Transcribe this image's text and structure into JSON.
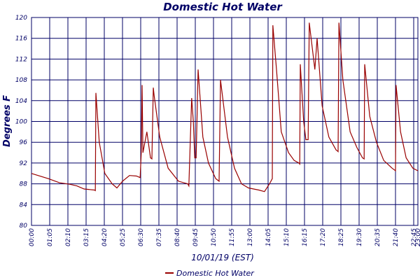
{
  "chart_data": {
    "type": "line",
    "title": "Domestic Hot Water",
    "x_label": "10/01/19 (EST)",
    "y_label": "Degrees F",
    "x": [
      0,
      60,
      100,
      138,
      162,
      188,
      225,
      228,
      230,
      242,
      262,
      288,
      305,
      325,
      350,
      375,
      388,
      392,
      395,
      398,
      412,
      425,
      430,
      435,
      438,
      458,
      488,
      525,
      558,
      562,
      572,
      578,
      583,
      588,
      595,
      612,
      632,
      658,
      670,
      675,
      700,
      725,
      750,
      775,
      812,
      832,
      850,
      858,
      860,
      862,
      875,
      892,
      918,
      938,
      955,
      958,
      960,
      972,
      980,
      988,
      992,
      1012,
      1020,
      1038,
      1062,
      1088,
      1093,
      1095,
      1098,
      1112,
      1138,
      1162,
      1182,
      1188,
      1190,
      1208,
      1232,
      1258,
      1288,
      1298,
      1300,
      1302,
      1318,
      1338,
      1362,
      1380
    ],
    "series": [
      {
        "name": "Domestic Hot Water",
        "color": "#990000",
        "values": [
          90,
          89,
          88.2,
          87.9,
          87.6,
          87,
          86.8,
          86.7,
          105.5,
          96,
          90,
          88,
          87.2,
          88.5,
          89.6,
          89.5,
          89.2,
          94,
          107,
          94,
          98,
          93,
          92.8,
          106.5,
          105,
          97,
          91,
          88.5,
          88,
          87.6,
          104.5,
          100,
          93,
          93,
          110,
          97,
          92,
          89,
          88.5,
          108,
          97,
          91,
          88,
          87.2,
          86.8,
          86.5,
          88,
          88.8,
          89,
          118.5,
          110,
          98,
          94,
          92.5,
          92,
          91.8,
          111,
          100,
          96.5,
          96.5,
          119,
          110,
          116,
          103,
          97,
          94.5,
          94.3,
          94.2,
          119,
          108,
          98,
          95,
          93,
          92.8,
          111,
          101,
          96,
          92.5,
          91,
          90.6,
          90.5,
          107,
          98,
          93,
          91,
          90.5
        ]
      }
    ],
    "xlim": [
      0,
      1380
    ],
    "xticks": [
      {
        "value": 0,
        "label": "00:00"
      },
      {
        "value": 65,
        "label": "01:05"
      },
      {
        "value": 130,
        "label": "02:10"
      },
      {
        "value": 195,
        "label": "03:15"
      },
      {
        "value": 260,
        "label": "04:20"
      },
      {
        "value": 325,
        "label": "05:25"
      },
      {
        "value": 390,
        "label": "06:30"
      },
      {
        "value": 455,
        "label": "07:35"
      },
      {
        "value": 520,
        "label": "08:40"
      },
      {
        "value": 585,
        "label": "09:45"
      },
      {
        "value": 650,
        "label": "10:50"
      },
      {
        "value": 715,
        "label": "11:55"
      },
      {
        "value": 780,
        "label": "13:00"
      },
      {
        "value": 845,
        "label": "14:05"
      },
      {
        "value": 910,
        "label": "15:10"
      },
      {
        "value": 975,
        "label": "16:15"
      },
      {
        "value": 1040,
        "label": "17:20"
      },
      {
        "value": 1105,
        "label": "18:25"
      },
      {
        "value": 1170,
        "label": "19:30"
      },
      {
        "value": 1235,
        "label": "20:35"
      },
      {
        "value": 1300,
        "label": "21:40"
      },
      {
        "value": 1365,
        "label": "22:45"
      },
      {
        "value": 1380,
        "label": "23:00"
      }
    ],
    "ylim": [
      80,
      120
    ],
    "yticks": [
      80,
      84,
      88,
      92,
      96,
      100,
      104,
      108,
      112,
      116,
      120
    ],
    "grid": true
  }
}
